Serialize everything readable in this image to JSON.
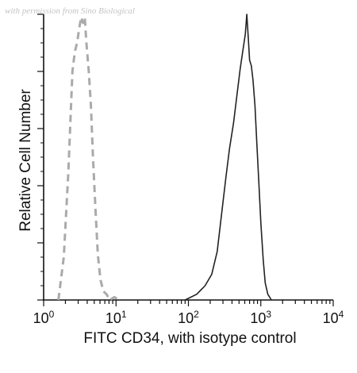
{
  "watermark": "with permission from Sino Biological",
  "chart_data": {
    "type": "line",
    "title": "",
    "xlabel": "FITC CD34, with isotype control",
    "ylabel": "Relative Cell Number",
    "x_scale": "log",
    "xlim": [
      1,
      10000
    ],
    "ylim": [
      0,
      1.0
    ],
    "x_ticks": [
      {
        "base": "10",
        "exp": "0"
      },
      {
        "base": "10",
        "exp": "1"
      },
      {
        "base": "10",
        "exp": "2"
      },
      {
        "base": "10",
        "exp": "3"
      },
      {
        "base": "10",
        "exp": "4"
      }
    ],
    "grid": false,
    "legend": "none",
    "series": [
      {
        "style": "dashed",
        "color": "#aaaaaa",
        "x": [
          1.6,
          1.9,
          2.2,
          2.5,
          2.7,
          2.9,
          3.1,
          3.3,
          3.5,
          3.7,
          3.9,
          4.2,
          4.5,
          4.8,
          5.2,
          5.6,
          6.1,
          6.7,
          7.4,
          8.2,
          9.5,
          11
        ],
        "y": [
          0.0,
          0.15,
          0.45,
          0.8,
          0.87,
          0.9,
          0.95,
          0.99,
          0.97,
          0.99,
          0.9,
          0.8,
          0.68,
          0.5,
          0.32,
          0.16,
          0.07,
          0.03,
          0.02,
          0.0,
          0.01,
          0.0
        ]
      },
      {
        "style": "solid",
        "color": "#222222",
        "x": [
          90,
          130,
          170,
          210,
          250,
          290,
          330,
          370,
          420,
          470,
          520,
          570,
          610,
          640,
          670,
          700,
          740,
          780,
          830,
          880,
          940,
          1000,
          1080,
          1150,
          1250,
          1400
        ],
        "y": [
          0.0,
          0.02,
          0.05,
          0.09,
          0.17,
          0.31,
          0.43,
          0.53,
          0.62,
          0.72,
          0.81,
          0.88,
          0.93,
          1.0,
          0.92,
          0.84,
          0.82,
          0.77,
          0.68,
          0.55,
          0.41,
          0.27,
          0.14,
          0.06,
          0.02,
          0.0
        ]
      }
    ]
  }
}
